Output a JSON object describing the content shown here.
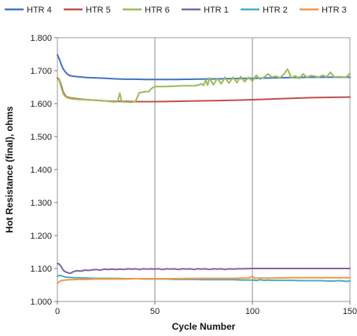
{
  "chart_data": {
    "type": "line",
    "title": "",
    "xlabel": "Cycle Number",
    "ylabel": "Hot Resistance (final), ohms",
    "xlim": [
      0,
      150
    ],
    "ylim": [
      1.0,
      1.8
    ],
    "x_ticks": [
      "0",
      "50",
      "100",
      "150"
    ],
    "y_ticks": [
      "1.000",
      "1.100",
      "1.200",
      "1.300",
      "1.400",
      "1.500",
      "1.600",
      "1.700",
      "1.800"
    ],
    "grid": "vertical",
    "legend_position": "top",
    "series": [
      {
        "name": "HTR 4",
        "color": "#4472C4",
        "points": [
          [
            0,
            1.748
          ],
          [
            1,
            1.735
          ],
          [
            2,
            1.718
          ],
          [
            3,
            1.705
          ],
          [
            4,
            1.697
          ],
          [
            5,
            1.69
          ],
          [
            6,
            1.686
          ],
          [
            8,
            1.683
          ],
          [
            10,
            1.682
          ],
          [
            15,
            1.679
          ],
          [
            20,
            1.678
          ],
          [
            25,
            1.677
          ],
          [
            30,
            1.675
          ],
          [
            35,
            1.674
          ],
          [
            40,
            1.674
          ],
          [
            45,
            1.673
          ],
          [
            50,
            1.673
          ],
          [
            60,
            1.673
          ],
          [
            70,
            1.674
          ],
          [
            80,
            1.675
          ],
          [
            90,
            1.676
          ],
          [
            100,
            1.677
          ],
          [
            110,
            1.678
          ],
          [
            120,
            1.679
          ],
          [
            130,
            1.68
          ],
          [
            140,
            1.68
          ],
          [
            150,
            1.68
          ]
        ]
      },
      {
        "name": "HTR 5",
        "color": "#C0504D",
        "points": [
          [
            0,
            1.678
          ],
          [
            1,
            1.672
          ],
          [
            2,
            1.655
          ],
          [
            3,
            1.635
          ],
          [
            4,
            1.625
          ],
          [
            5,
            1.62
          ],
          [
            7,
            1.617
          ],
          [
            10,
            1.615
          ],
          [
            15,
            1.612
          ],
          [
            20,
            1.61
          ],
          [
            25,
            1.608
          ],
          [
            30,
            1.607
          ],
          [
            35,
            1.607
          ],
          [
            40,
            1.606
          ],
          [
            50,
            1.606
          ],
          [
            60,
            1.607
          ],
          [
            70,
            1.608
          ],
          [
            80,
            1.609
          ],
          [
            90,
            1.61
          ],
          [
            100,
            1.612
          ],
          [
            110,
            1.614
          ],
          [
            120,
            1.616
          ],
          [
            130,
            1.618
          ],
          [
            140,
            1.619
          ],
          [
            150,
            1.62
          ]
        ]
      },
      {
        "name": "HTR 6",
        "color": "#9BBB59",
        "points": [
          [
            0,
            1.675
          ],
          [
            1,
            1.67
          ],
          [
            2,
            1.648
          ],
          [
            3,
            1.63
          ],
          [
            4,
            1.622
          ],
          [
            5,
            1.618
          ],
          [
            7,
            1.615
          ],
          [
            10,
            1.613
          ],
          [
            15,
            1.612
          ],
          [
            20,
            1.61
          ],
          [
            25,
            1.608
          ],
          [
            28,
            1.606
          ],
          [
            30,
            1.605
          ],
          [
            31,
            1.61
          ],
          [
            32,
            1.632
          ],
          [
            33,
            1.606
          ],
          [
            35,
            1.605
          ],
          [
            38,
            1.604
          ],
          [
            40,
            1.606
          ],
          [
            41,
            1.62
          ],
          [
            42,
            1.633
          ],
          [
            45,
            1.636
          ],
          [
            47,
            1.637
          ],
          [
            48,
            1.645
          ],
          [
            50,
            1.652
          ],
          [
            55,
            1.652
          ],
          [
            60,
            1.653
          ],
          [
            65,
            1.654
          ],
          [
            70,
            1.654
          ],
          [
            72,
            1.656
          ],
          [
            74,
            1.66
          ],
          [
            75,
            1.655
          ],
          [
            76,
            1.672
          ],
          [
            77,
            1.656
          ],
          [
            78,
            1.678
          ],
          [
            80,
            1.657
          ],
          [
            82,
            1.677
          ],
          [
            84,
            1.66
          ],
          [
            86,
            1.68
          ],
          [
            88,
            1.662
          ],
          [
            90,
            1.68
          ],
          [
            92,
            1.664
          ],
          [
            94,
            1.682
          ],
          [
            96,
            1.666
          ],
          [
            98,
            1.68
          ],
          [
            100,
            1.668
          ],
          [
            102,
            1.686
          ],
          [
            104,
            1.674
          ],
          [
            106,
            1.68
          ],
          [
            108,
            1.69
          ],
          [
            110,
            1.68
          ],
          [
            112,
            1.683
          ],
          [
            114,
            1.678
          ],
          [
            116,
            1.688
          ],
          [
            118,
            1.705
          ],
          [
            120,
            1.678
          ],
          [
            122,
            1.684
          ],
          [
            124,
            1.676
          ],
          [
            126,
            1.69
          ],
          [
            128,
            1.68
          ],
          [
            130,
            1.685
          ],
          [
            132,
            1.683
          ],
          [
            134,
            1.68
          ],
          [
            136,
            1.686
          ],
          [
            138,
            1.681
          ],
          [
            140,
            1.695
          ],
          [
            142,
            1.68
          ],
          [
            144,
            1.682
          ],
          [
            146,
            1.681
          ],
          [
            148,
            1.68
          ],
          [
            150,
            1.692
          ]
        ]
      },
      {
        "name": "HTR 1",
        "color": "#8064A2",
        "points": [
          [
            0,
            1.115
          ],
          [
            1,
            1.113
          ],
          [
            2,
            1.105
          ],
          [
            3,
            1.095
          ],
          [
            4,
            1.09
          ],
          [
            5,
            1.088
          ],
          [
            6,
            1.086
          ],
          [
            7,
            1.086
          ],
          [
            8,
            1.09
          ],
          [
            10,
            1.093
          ],
          [
            12,
            1.092
          ],
          [
            14,
            1.095
          ],
          [
            16,
            1.094
          ],
          [
            18,
            1.096
          ],
          [
            20,
            1.097
          ],
          [
            22,
            1.095
          ],
          [
            24,
            1.098
          ],
          [
            26,
            1.097
          ],
          [
            28,
            1.098
          ],
          [
            30,
            1.097
          ],
          [
            32,
            1.098
          ],
          [
            34,
            1.097
          ],
          [
            36,
            1.099
          ],
          [
            38,
            1.098
          ],
          [
            40,
            1.099
          ],
          [
            42,
            1.097
          ],
          [
            44,
            1.099
          ],
          [
            46,
            1.098
          ],
          [
            48,
            1.099
          ],
          [
            50,
            1.098
          ],
          [
            52,
            1.099
          ],
          [
            54,
            1.097
          ],
          [
            56,
            1.099
          ],
          [
            58,
            1.098
          ],
          [
            60,
            1.099
          ],
          [
            62,
            1.097
          ],
          [
            64,
            1.099
          ],
          [
            66,
            1.098
          ],
          [
            68,
            1.099
          ],
          [
            70,
            1.097
          ],
          [
            72,
            1.099
          ],
          [
            74,
            1.098
          ],
          [
            76,
            1.099
          ],
          [
            78,
            1.097
          ],
          [
            80,
            1.099
          ],
          [
            82,
            1.098
          ],
          [
            84,
            1.099
          ],
          [
            86,
            1.097
          ],
          [
            88,
            1.099
          ],
          [
            90,
            1.098
          ],
          [
            92,
            1.099
          ],
          [
            95,
            1.099
          ],
          [
            100,
            1.1
          ],
          [
            110,
            1.1
          ],
          [
            120,
            1.1
          ],
          [
            130,
            1.1
          ],
          [
            140,
            1.1
          ],
          [
            150,
            1.1
          ]
        ]
      },
      {
        "name": "HTR 2",
        "color": "#4BACC6",
        "points": [
          [
            0,
            1.076
          ],
          [
            1,
            1.079
          ],
          [
            2,
            1.078
          ],
          [
            3,
            1.076
          ],
          [
            4,
            1.074
          ],
          [
            6,
            1.073
          ],
          [
            8,
            1.072
          ],
          [
            10,
            1.072
          ],
          [
            15,
            1.071
          ],
          [
            20,
            1.07
          ],
          [
            25,
            1.07
          ],
          [
            30,
            1.07
          ],
          [
            35,
            1.069
          ],
          [
            40,
            1.069
          ],
          [
            45,
            1.068
          ],
          [
            50,
            1.068
          ],
          [
            55,
            1.068
          ],
          [
            60,
            1.067
          ],
          [
            65,
            1.067
          ],
          [
            70,
            1.067
          ],
          [
            75,
            1.066
          ],
          [
            80,
            1.066
          ],
          [
            85,
            1.066
          ],
          [
            90,
            1.066
          ],
          [
            95,
            1.065
          ],
          [
            100,
            1.065
          ],
          [
            102,
            1.063
          ],
          [
            104,
            1.066
          ],
          [
            106,
            1.064
          ],
          [
            108,
            1.065
          ],
          [
            110,
            1.064
          ],
          [
            115,
            1.064
          ],
          [
            120,
            1.064
          ],
          [
            125,
            1.063
          ],
          [
            130,
            1.063
          ],
          [
            135,
            1.063
          ],
          [
            140,
            1.062
          ],
          [
            145,
            1.063
          ],
          [
            148,
            1.061
          ],
          [
            150,
            1.062
          ]
        ]
      },
      {
        "name": "HTR 3",
        "color": "#F79646",
        "points": [
          [
            0,
            1.055
          ],
          [
            1,
            1.06
          ],
          [
            2,
            1.063
          ],
          [
            4,
            1.065
          ],
          [
            6,
            1.066
          ],
          [
            8,
            1.066
          ],
          [
            10,
            1.067
          ],
          [
            15,
            1.067
          ],
          [
            20,
            1.068
          ],
          [
            25,
            1.068
          ],
          [
            30,
            1.068
          ],
          [
            35,
            1.068
          ],
          [
            40,
            1.069
          ],
          [
            50,
            1.069
          ],
          [
            60,
            1.069
          ],
          [
            70,
            1.07
          ],
          [
            80,
            1.07
          ],
          [
            90,
            1.07
          ],
          [
            95,
            1.071
          ],
          [
            98,
            1.071
          ],
          [
            100,
            1.076
          ],
          [
            101,
            1.07
          ],
          [
            103,
            1.071
          ],
          [
            105,
            1.071
          ],
          [
            110,
            1.071
          ],
          [
            120,
            1.072
          ],
          [
            130,
            1.072
          ],
          [
            140,
            1.072
          ],
          [
            150,
            1.072
          ]
        ]
      }
    ]
  }
}
